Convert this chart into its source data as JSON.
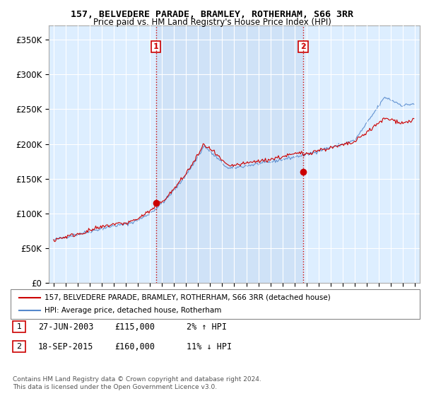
{
  "title": "157, BELVEDERE PARADE, BRAMLEY, ROTHERHAM, S66 3RR",
  "subtitle": "Price paid vs. HM Land Registry's House Price Index (HPI)",
  "ylabel_ticks": [
    "£0",
    "£50K",
    "£100K",
    "£150K",
    "£200K",
    "£250K",
    "£300K",
    "£350K"
  ],
  "ytick_values": [
    0,
    50000,
    100000,
    150000,
    200000,
    250000,
    300000,
    350000
  ],
  "ylim": [
    0,
    370000
  ],
  "xlim_start": 1994.6,
  "xlim_end": 2025.4,
  "purchase1": {
    "date": 2003.49,
    "price": 115000,
    "label": "1",
    "date_str": "27-JUN-2003",
    "price_str": "£115,000",
    "hpi_str": "2% ↑ HPI"
  },
  "purchase2": {
    "date": 2015.72,
    "price": 160000,
    "label": "2",
    "date_str": "18-SEP-2015",
    "price_str": "£160,000",
    "hpi_str": "11% ↓ HPI"
  },
  "legend_line1": "157, BELVEDERE PARADE, BRAMLEY, ROTHERHAM, S66 3RR (detached house)",
  "legend_line2": "HPI: Average price, detached house, Rotherham",
  "footer1": "Contains HM Land Registry data © Crown copyright and database right 2024.",
  "footer2": "This data is licensed under the Open Government Licence v3.0.",
  "line_color_red": "#cc0000",
  "line_color_blue": "#5588cc",
  "dot_color": "#cc0000",
  "vline_color": "#cc0000",
  "bg_color": "#ddeeff",
  "highlight_color": "#cce0f5",
  "plot_bg_color": "#ddeeff"
}
